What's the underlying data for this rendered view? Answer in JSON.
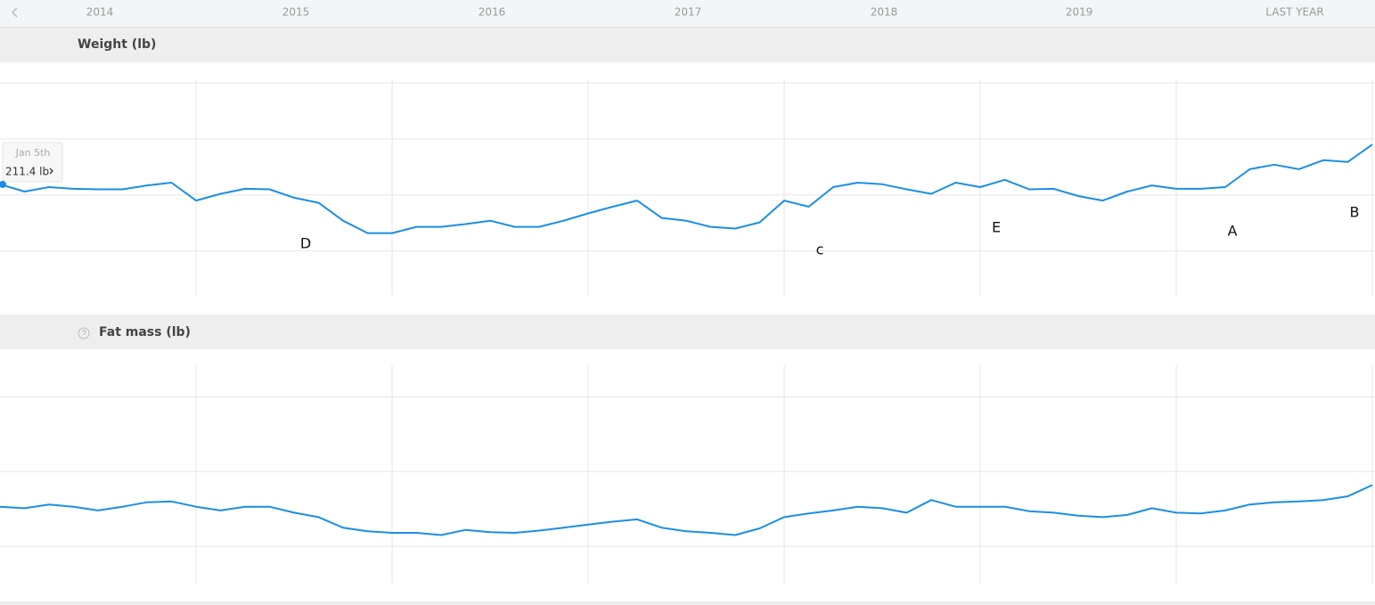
{
  "nav": {
    "items": [
      "2014",
      "2015",
      "2016",
      "2017",
      "2018",
      "2019",
      "LAST YEAR"
    ]
  },
  "tooltip": {
    "date": "Jan 5th",
    "value": "211.4 lb"
  },
  "chart_data": [
    {
      "type": "line",
      "title": "Weight (lb)",
      "x": [
        2014,
        2014.125,
        2014.25,
        2014.375,
        2014.5,
        2014.625,
        2014.75,
        2014.875,
        2015,
        2015.125,
        2015.25,
        2015.375,
        2015.5,
        2015.625,
        2015.75,
        2015.875,
        2016,
        2016.125,
        2016.25,
        2016.375,
        2016.5,
        2016.625,
        2016.75,
        2016.875,
        2017,
        2017.125,
        2017.25,
        2017.375,
        2017.5,
        2017.625,
        2017.75,
        2017.875,
        2018,
        2018.125,
        2018.25,
        2018.375,
        2018.5,
        2018.625,
        2018.75,
        2018.875,
        2019,
        2019.125,
        2019.25,
        2019.375,
        2019.5,
        2019.625,
        2019.75,
        2019.875,
        2020,
        2020.125,
        2020.25,
        2020.375,
        2020.5,
        2020.625,
        2020.75,
        2020.875,
        2021
      ],
      "series": [
        {
          "color": "#1a8fe3",
          "values": [
            211.9,
            210.6,
            211.4,
            211.1,
            211.0,
            211.0,
            211.7,
            212.2,
            209.0,
            210.2,
            211.1,
            211.0,
            209.5,
            208.6,
            205.4,
            203.2,
            203.2,
            204.3,
            204.3,
            204.8,
            205.4,
            204.3,
            204.3,
            205.4,
            206.7,
            207.9,
            209.0,
            205.9,
            205.4,
            204.3,
            204.0,
            205.1,
            209.0,
            207.9,
            211.4,
            212.2,
            211.9,
            211.0,
            210.2,
            212.2,
            211.4,
            212.7,
            211.0,
            211.1,
            209.8,
            209.0,
            210.6,
            211.7,
            211.1,
            211.1,
            211.4,
            214.6,
            215.4,
            214.6,
            216.2,
            215.9,
            219.0
          ]
        }
      ],
      "xlim": [
        2014,
        2021
      ],
      "xticks": [
        2015,
        2016,
        2017,
        2018,
        2019,
        2020,
        2021
      ],
      "ylim": [
        192,
        230
      ],
      "yticks": [
        200,
        210,
        220,
        230
      ],
      "grid": true,
      "annotations": [
        "D",
        "c",
        "E",
        "A",
        "B"
      ]
    },
    {
      "type": "line",
      "title": "Fat mass (lb)",
      "x": [
        2014,
        2014.125,
        2014.25,
        2014.375,
        2014.5,
        2014.625,
        2014.75,
        2014.875,
        2015,
        2015.125,
        2015.25,
        2015.375,
        2015.5,
        2015.625,
        2015.75,
        2015.875,
        2016,
        2016.125,
        2016.25,
        2016.375,
        2016.5,
        2016.625,
        2016.75,
        2016.875,
        2017,
        2017.125,
        2017.25,
        2017.375,
        2017.5,
        2017.625,
        2017.75,
        2017.875,
        2018,
        2018.125,
        2018.25,
        2018.375,
        2018.5,
        2018.625,
        2018.75,
        2018.875,
        2019,
        2019.125,
        2019.25,
        2019.375,
        2019.5,
        2019.625,
        2019.75,
        2019.875,
        2020,
        2020.125,
        2020.25,
        2020.375,
        2020.5,
        2020.625,
        2020.75,
        2020.875,
        2021
      ],
      "series": [
        {
          "color": "#1a8fe3",
          "values": [
            45.3,
            45.1,
            45.6,
            45.3,
            44.8,
            45.3,
            45.9,
            46.0,
            45.3,
            44.8,
            45.3,
            45.3,
            44.5,
            43.9,
            42.5,
            42.0,
            41.8,
            41.8,
            41.5,
            42.2,
            41.9,
            41.8,
            42.1,
            42.5,
            42.9,
            43.3,
            43.6,
            42.5,
            42.0,
            41.8,
            41.5,
            42.4,
            43.9,
            44.4,
            44.8,
            45.3,
            45.1,
            44.5,
            46.2,
            45.3,
            45.3,
            45.3,
            44.7,
            44.5,
            44.1,
            43.9,
            44.2,
            45.1,
            44.5,
            44.4,
            44.8,
            45.6,
            45.9,
            46.0,
            46.2,
            46.7,
            48.2
          ]
        }
      ],
      "xlim": [
        2014,
        2021
      ],
      "xticks": [
        2015,
        2016,
        2017,
        2018,
        2019,
        2020,
        2021
      ],
      "ylim": [
        35,
        64
      ],
      "yticks": [
        40,
        50,
        60
      ],
      "grid": true
    }
  ]
}
